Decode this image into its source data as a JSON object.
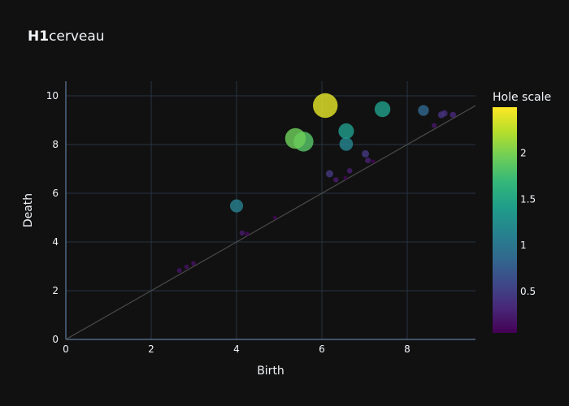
{
  "chart_data": {
    "type": "scatter",
    "title_bold": "H1",
    "title_rest": "cerveau",
    "xlabel": "Birth",
    "ylabel": "Death",
    "xlim": [
      0,
      9.6
    ],
    "ylim": [
      0,
      10.6
    ],
    "xticks": [
      0,
      2,
      4,
      6,
      8
    ],
    "yticks": [
      0,
      2,
      4,
      6,
      8,
      10
    ],
    "diagonal_line": true,
    "grid": true,
    "colorbar": {
      "title": "Hole scale",
      "min": 0.05,
      "max": 2.5,
      "ticks": [
        0.5,
        1,
        1.5,
        2
      ],
      "tick_labels": [
        "0.5",
        "1",
        "1.5",
        "2"
      ],
      "colorscale": "viridis"
    },
    "points": [
      {
        "x": 6.08,
        "y": 9.6,
        "v": 2.4
      },
      {
        "x": 5.38,
        "y": 8.25,
        "v": 1.95
      },
      {
        "x": 5.57,
        "y": 8.12,
        "v": 1.85
      },
      {
        "x": 7.42,
        "y": 9.45,
        "v": 1.4
      },
      {
        "x": 6.57,
        "y": 8.55,
        "v": 1.38
      },
      {
        "x": 6.57,
        "y": 8.02,
        "v": 1.15
      },
      {
        "x": 4.0,
        "y": 5.48,
        "v": 1.1
      },
      {
        "x": 8.38,
        "y": 9.4,
        "v": 0.85
      },
      {
        "x": 7.02,
        "y": 7.62,
        "v": 0.45
      },
      {
        "x": 6.18,
        "y": 6.8,
        "v": 0.45
      },
      {
        "x": 8.8,
        "y": 9.22,
        "v": 0.4
      },
      {
        "x": 8.87,
        "y": 9.28,
        "v": 0.35
      },
      {
        "x": 9.07,
        "y": 9.22,
        "v": 0.32
      },
      {
        "x": 7.08,
        "y": 7.35,
        "v": 0.28
      },
      {
        "x": 6.65,
        "y": 6.92,
        "v": 0.25
      },
      {
        "x": 6.33,
        "y": 6.55,
        "v": 0.22
      },
      {
        "x": 8.63,
        "y": 8.78,
        "v": 0.2
      },
      {
        "x": 4.13,
        "y": 4.37,
        "v": 0.22
      },
      {
        "x": 4.25,
        "y": 4.33,
        "v": 0.12
      },
      {
        "x": 2.66,
        "y": 2.83,
        "v": 0.18
      },
      {
        "x": 2.83,
        "y": 2.98,
        "v": 0.16
      },
      {
        "x": 2.99,
        "y": 3.12,
        "v": 0.15
      },
      {
        "x": 4.9,
        "y": 5.0,
        "v": 0.08
      },
      {
        "x": 6.55,
        "y": 6.63,
        "v": 0.08
      },
      {
        "x": 7.2,
        "y": 7.3,
        "v": 0.06
      }
    ]
  }
}
